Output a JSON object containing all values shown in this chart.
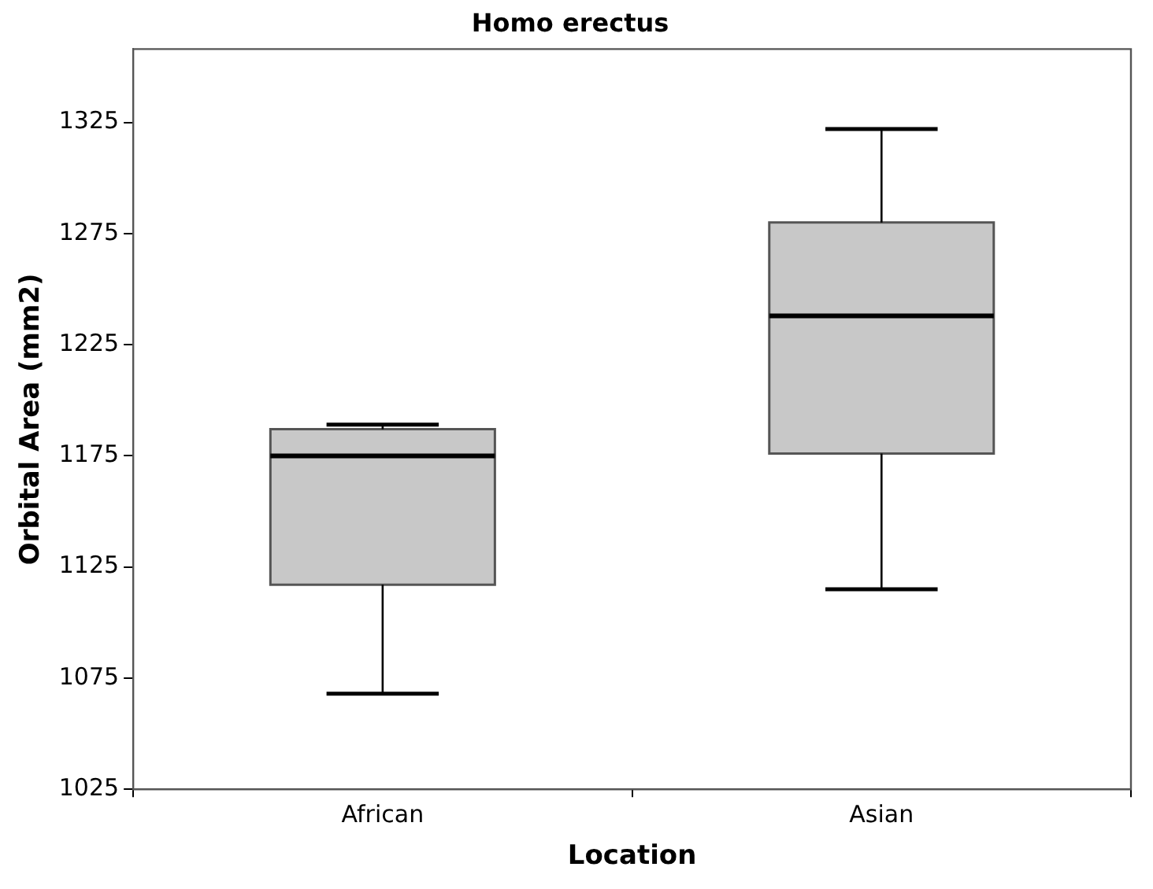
{
  "chart_data": {
    "type": "box",
    "title": "Homo erectus",
    "xlabel": "Location",
    "ylabel": "Orbital Area (mm2)",
    "categories": [
      "African",
      "Asian"
    ],
    "boxes": [
      {
        "low": 1068,
        "q1": 1117,
        "median": 1175,
        "q3": 1187,
        "high": 1189
      },
      {
        "low": 1115,
        "q1": 1176,
        "median": 1238,
        "q3": 1280,
        "high": 1322
      }
    ],
    "ylim": [
      1025,
      1358
    ],
    "yticks": [
      1025,
      1075,
      1125,
      1175,
      1225,
      1275,
      1325
    ]
  }
}
